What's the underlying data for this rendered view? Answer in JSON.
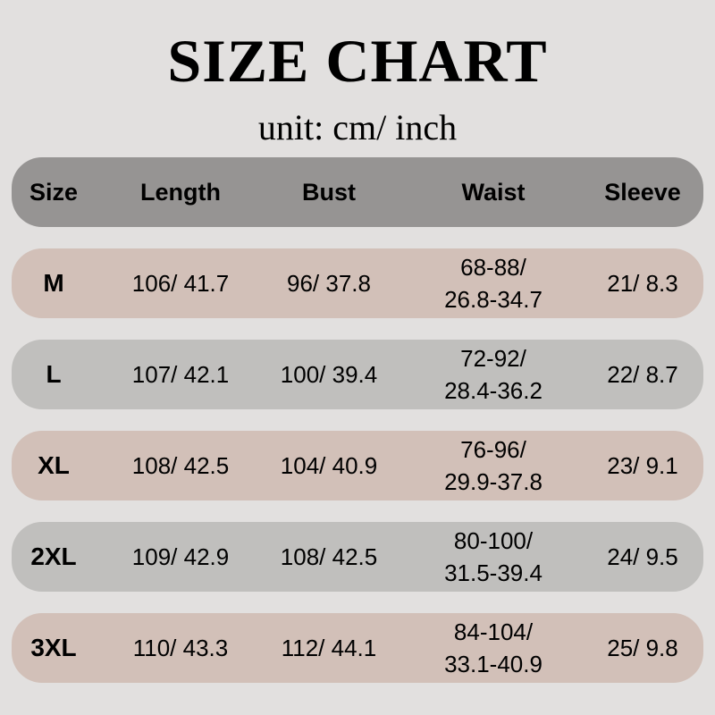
{
  "title": "SIZE CHART",
  "unit": "unit: cm/ inch",
  "colors": {
    "background": "#e2e0df",
    "header": "#969493",
    "row_pink": "#d2c0b8",
    "row_gray": "#c0bfbd"
  },
  "headers": [
    "Size",
    "Length",
    "Bust",
    "Waist",
    "Sleeve"
  ],
  "rows": [
    {
      "size": "M",
      "length": "106/ 41.7",
      "bust": "96/ 37.8",
      "waist_1": "68-88/",
      "waist_2": "26.8-34.7",
      "sleeve": "21/ 8.3"
    },
    {
      "size": "L",
      "length": "107/ 42.1",
      "bust": "100/ 39.4",
      "waist_1": "72-92/",
      "waist_2": "28.4-36.2",
      "sleeve": "22/ 8.7"
    },
    {
      "size": "XL",
      "length": "108/ 42.5",
      "bust": "104/ 40.9",
      "waist_1": "76-96/",
      "waist_2": "29.9-37.8",
      "sleeve": "23/ 9.1"
    },
    {
      "size": "2XL",
      "length": "109/ 42.9",
      "bust": "108/ 42.5",
      "waist_1": "80-100/",
      "waist_2": "31.5-39.4",
      "sleeve": "24/ 9.5"
    },
    {
      "size": "3XL",
      "length": "110/ 43.3",
      "bust": "112/ 44.1",
      "waist_1": "84-104/",
      "waist_2": "33.1-40.9",
      "sleeve": "25/ 9.8"
    }
  ]
}
